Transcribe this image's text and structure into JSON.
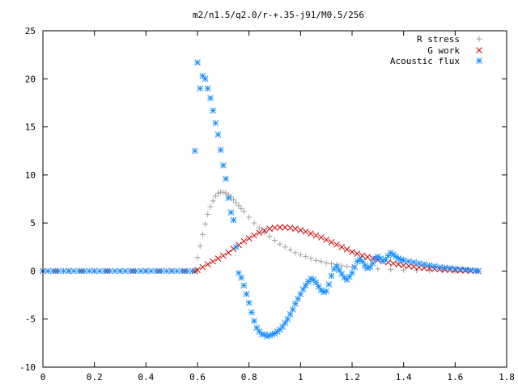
{
  "chart_data": {
    "type": "scatter",
    "title": "m2/n1.5/q2.0/r-+.35-j91/M0.5/256",
    "xlabel": "",
    "ylabel": "",
    "xlim": [
      0,
      1.8
    ],
    "ylim": [
      -10,
      25
    ],
    "xticks": [
      "0",
      "0.2",
      "0.4",
      "0.6",
      "0.8",
      "1",
      "1.2",
      "1.4",
      "1.6",
      "1.8"
    ],
    "yticks": [
      "-10",
      "-5",
      "0",
      "5",
      "10",
      "15",
      "20",
      "25"
    ],
    "grid": false,
    "legend_position": "top-right",
    "series": [
      {
        "name": "R stress",
        "marker": "plus",
        "color": "#a0a0a0",
        "x": [
          0.0,
          0.05,
          0.1,
          0.15,
          0.2,
          0.25,
          0.3,
          0.35,
          0.4,
          0.45,
          0.5,
          0.55,
          0.59,
          0.6,
          0.61,
          0.62,
          0.63,
          0.64,
          0.65,
          0.66,
          0.67,
          0.68,
          0.69,
          0.7,
          0.71,
          0.72,
          0.73,
          0.74,
          0.75,
          0.76,
          0.77,
          0.78,
          0.8,
          0.82,
          0.84,
          0.86,
          0.88,
          0.9,
          0.92,
          0.94,
          0.96,
          0.98,
          1.0,
          1.02,
          1.04,
          1.06,
          1.08,
          1.1,
          1.12,
          1.14,
          1.16,
          1.18,
          1.2,
          1.25,
          1.3,
          1.35,
          1.4,
          1.45,
          1.5,
          1.55,
          1.6,
          1.65,
          1.69
        ],
        "y": [
          0,
          0,
          0,
          0,
          0,
          0,
          0,
          0,
          0,
          0,
          0,
          0,
          0,
          1.4,
          2.6,
          3.8,
          4.9,
          5.9,
          6.7,
          7.3,
          7.8,
          8.1,
          8.2,
          8.2,
          8.1,
          7.9,
          7.7,
          7.4,
          7.1,
          6.8,
          6.5,
          6.2,
          5.6,
          5.0,
          4.5,
          4.0,
          3.6,
          3.2,
          2.8,
          2.5,
          2.2,
          1.9,
          1.7,
          1.5,
          1.3,
          1.1,
          1.0,
          0.85,
          0.75,
          0.65,
          0.55,
          0.48,
          0.42,
          0.3,
          0.22,
          0.15,
          0.1,
          0.07,
          0.05,
          0.03,
          0.02,
          0.01,
          0.0
        ]
      },
      {
        "name": "G work",
        "marker": "cross",
        "color": "#cc0000",
        "x": [
          0.0,
          0.05,
          0.1,
          0.15,
          0.2,
          0.25,
          0.3,
          0.35,
          0.4,
          0.45,
          0.5,
          0.55,
          0.59,
          0.6,
          0.62,
          0.64,
          0.66,
          0.68,
          0.7,
          0.72,
          0.74,
          0.76,
          0.78,
          0.8,
          0.82,
          0.84,
          0.86,
          0.88,
          0.9,
          0.92,
          0.94,
          0.96,
          0.98,
          1.0,
          1.02,
          1.04,
          1.06,
          1.08,
          1.1,
          1.12,
          1.14,
          1.16,
          1.18,
          1.2,
          1.22,
          1.24,
          1.26,
          1.28,
          1.3,
          1.32,
          1.34,
          1.36,
          1.38,
          1.4,
          1.42,
          1.44,
          1.46,
          1.48,
          1.5,
          1.52,
          1.54,
          1.56,
          1.58,
          1.6,
          1.62,
          1.64,
          1.66,
          1.68,
          1.69
        ],
        "y": [
          0,
          0,
          0,
          0,
          0,
          0,
          0,
          0,
          0,
          0,
          0,
          0,
          0,
          0.1,
          0.4,
          0.7,
          1.0,
          1.3,
          1.6,
          1.9,
          2.3,
          2.7,
          3.1,
          3.4,
          3.7,
          4.0,
          4.2,
          4.4,
          4.5,
          4.55,
          4.55,
          4.5,
          4.4,
          4.25,
          4.1,
          3.9,
          3.7,
          3.5,
          3.25,
          3.0,
          2.75,
          2.5,
          2.25,
          2.0,
          1.8,
          1.6,
          1.45,
          1.3,
          1.15,
          1.0,
          0.9,
          0.8,
          0.7,
          0.6,
          0.52,
          0.45,
          0.38,
          0.32,
          0.27,
          0.22,
          0.18,
          0.14,
          0.11,
          0.08,
          0.06,
          0.04,
          0.02,
          0.01,
          0.0
        ]
      },
      {
        "name": "Acoustic flux",
        "marker": "star",
        "color": "#1e90ff",
        "x": [
          0.0,
          0.02,
          0.04,
          0.06,
          0.08,
          0.1,
          0.12,
          0.14,
          0.16,
          0.18,
          0.2,
          0.22,
          0.24,
          0.26,
          0.28,
          0.3,
          0.32,
          0.34,
          0.36,
          0.38,
          0.4,
          0.42,
          0.44,
          0.46,
          0.48,
          0.5,
          0.52,
          0.54,
          0.56,
          0.58,
          0.59,
          0.6,
          0.61,
          0.62,
          0.63,
          0.64,
          0.65,
          0.66,
          0.67,
          0.68,
          0.69,
          0.7,
          0.71,
          0.72,
          0.73,
          0.74,
          0.75,
          0.76,
          0.77,
          0.78,
          0.79,
          0.8,
          0.81,
          0.82,
          0.83,
          0.84,
          0.85,
          0.86,
          0.87,
          0.88,
          0.89,
          0.9,
          0.91,
          0.92,
          0.93,
          0.94,
          0.95,
          0.96,
          0.97,
          0.98,
          0.99,
          1.0,
          1.01,
          1.02,
          1.03,
          1.04,
          1.05,
          1.06,
          1.07,
          1.08,
          1.09,
          1.1,
          1.11,
          1.12,
          1.13,
          1.14,
          1.15,
          1.16,
          1.17,
          1.18,
          1.19,
          1.2,
          1.21,
          1.22,
          1.23,
          1.24,
          1.25,
          1.26,
          1.27,
          1.28,
          1.29,
          1.3,
          1.31,
          1.32,
          1.33,
          1.34,
          1.35,
          1.36,
          1.37,
          1.38,
          1.39,
          1.4,
          1.42,
          1.44,
          1.46,
          1.48,
          1.5,
          1.52,
          1.54,
          1.56,
          1.58,
          1.6,
          1.62,
          1.64,
          1.66,
          1.68,
          1.69
        ],
        "y": [
          0,
          0,
          0,
          0,
          0,
          0,
          0,
          0,
          0,
          0,
          0,
          0,
          0,
          0,
          0,
          0,
          0,
          0,
          0,
          0,
          0,
          0,
          0,
          0,
          0,
          0,
          0,
          0,
          0,
          0,
          12.5,
          21.7,
          19.0,
          20.3,
          20.0,
          19.0,
          18.0,
          16.7,
          15.4,
          14.2,
          12.6,
          11.0,
          9.6,
          7.6,
          6.1,
          5.3,
          2.5,
          -0.2,
          -0.7,
          -1.5,
          -2.4,
          -3.3,
          -4.3,
          -5.2,
          -5.9,
          -6.3,
          -6.6,
          -6.6,
          -6.8,
          -6.7,
          -6.6,
          -6.5,
          -6.3,
          -6.1,
          -5.8,
          -5.4,
          -5.0,
          -4.5,
          -4.0,
          -3.4,
          -2.9,
          -2.4,
          -1.9,
          -1.5,
          -1.1,
          -0.8,
          -0.9,
          -1.2,
          -1.6,
          -2.0,
          -2.2,
          -2.1,
          -1.4,
          -0.5,
          0.2,
          0.5,
          0.1,
          -0.3,
          -0.7,
          -0.9,
          -0.6,
          -0.2,
          0.4,
          1.0,
          1.2,
          1.0,
          0.6,
          0.3,
          0.4,
          0.8,
          1.3,
          1.5,
          1.3,
          1.0,
          1.2,
          1.6,
          1.9,
          1.7,
          1.5,
          1.3,
          1.2,
          1.1,
          1.0,
          0.9,
          0.8,
          0.7,
          0.6,
          0.5,
          0.4,
          0.35,
          0.3,
          0.25,
          0.2,
          0.15,
          0.1,
          0.05,
          0.0
        ]
      }
    ]
  }
}
